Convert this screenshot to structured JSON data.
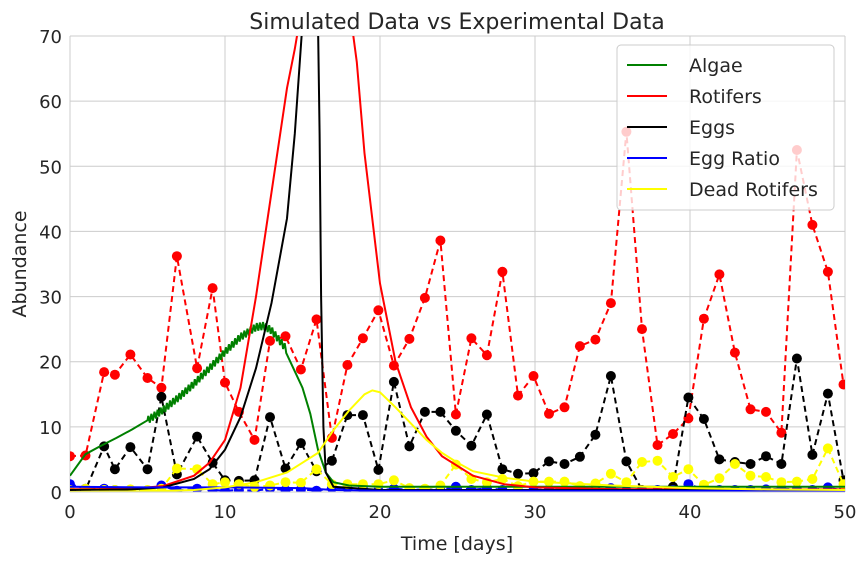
{
  "chart_data": {
    "type": "line",
    "title": "Simulated Data vs Experimental Data",
    "xlabel": "Time [days]",
    "ylabel": "Abundance",
    "xlim": [
      0,
      50
    ],
    "ylim": [
      0,
      70
    ],
    "xticks": [
      0,
      10,
      20,
      30,
      40,
      50
    ],
    "yticks": [
      0,
      10,
      20,
      30,
      40,
      50,
      60,
      70
    ],
    "grid": true,
    "legend_position": "top-right",
    "legend": [
      "Algae",
      "Rotifers",
      "Eggs",
      "Egg Ratio",
      "Dead Rotifers"
    ],
    "simulated_series": [
      {
        "name": "Algae",
        "color": "#008000",
        "points": [
          [
            0,
            2.5
          ],
          [
            1,
            5.8
          ],
          [
            2,
            7.1
          ],
          [
            3,
            8.3
          ],
          [
            4,
            9.6
          ],
          [
            5,
            11
          ],
          [
            6,
            12.6
          ],
          [
            7,
            14.5
          ],
          [
            8,
            16.6
          ],
          [
            9,
            19
          ],
          [
            10,
            21.5
          ],
          [
            11,
            23.8
          ],
          [
            12,
            25.3
          ],
          [
            12.5,
            25.5
          ],
          [
            13,
            24.8
          ],
          [
            14,
            21.8
          ],
          [
            15,
            16
          ],
          [
            15.5,
            12
          ],
          [
            16,
            6.5
          ],
          [
            16.5,
            3
          ],
          [
            17,
            1.5
          ],
          [
            18,
            1
          ],
          [
            20,
            0.8
          ],
          [
            25,
            0.8
          ],
          [
            30,
            0.8
          ],
          [
            35,
            0.8
          ],
          [
            40,
            0.8
          ],
          [
            45,
            0.8
          ],
          [
            50,
            0.8
          ]
        ],
        "oscillation": {
          "x_start": 5,
          "x_end": 14,
          "amplitude": 0.6,
          "period": 0.2
        }
      },
      {
        "name": "Rotifers",
        "color": "#ff0000",
        "points": [
          [
            0,
            0.4
          ],
          [
            2,
            0.45
          ],
          [
            4,
            0.5
          ],
          [
            6,
            0.9
          ],
          [
            8,
            2.5
          ],
          [
            9,
            4.5
          ],
          [
            10,
            8
          ],
          [
            11,
            16
          ],
          [
            12,
            30
          ],
          [
            13,
            46
          ],
          [
            14,
            62
          ],
          [
            14.5,
            68
          ],
          [
            15,
            75
          ],
          [
            18,
            75
          ],
          [
            18.5,
            66
          ],
          [
            19,
            52
          ],
          [
            20,
            32
          ],
          [
            21,
            20
          ],
          [
            22,
            13
          ],
          [
            23,
            8.5
          ],
          [
            24,
            5.5
          ],
          [
            26,
            2.5
          ],
          [
            28,
            1.2
          ],
          [
            30,
            0.7
          ],
          [
            35,
            0.45
          ],
          [
            40,
            0.4
          ],
          [
            45,
            0.4
          ],
          [
            50,
            0.4
          ]
        ]
      },
      {
        "name": "Eggs",
        "color": "#000000",
        "points": [
          [
            0,
            0.3
          ],
          [
            4,
            0.4
          ],
          [
            6,
            0.7
          ],
          [
            8,
            2
          ],
          [
            9,
            3.5
          ],
          [
            10,
            6.5
          ],
          [
            11,
            11.5
          ],
          [
            12,
            19
          ],
          [
            13,
            29
          ],
          [
            14,
            42
          ],
          [
            14.5,
            55
          ],
          [
            15,
            72
          ],
          [
            16,
            72
          ],
          [
            16.1,
            55
          ],
          [
            16.2,
            30
          ],
          [
            16.35,
            10
          ],
          [
            16.5,
            3
          ],
          [
            17,
            0.8
          ],
          [
            20,
            0.3
          ],
          [
            50,
            0.3
          ]
        ]
      },
      {
        "name": "Egg Ratio",
        "color": "#0000ff",
        "points": [
          [
            0,
            0.8
          ],
          [
            5,
            0.7
          ],
          [
            10,
            0.7
          ],
          [
            15,
            0.6
          ],
          [
            17,
            0.3
          ],
          [
            20,
            0.2
          ],
          [
            30,
            0.2
          ],
          [
            40,
            0.2
          ],
          [
            50,
            0.2
          ]
        ]
      },
      {
        "name": "Dead Rotifers",
        "color": "#ffff00",
        "points": [
          [
            0,
            0
          ],
          [
            5,
            0.1
          ],
          [
            8,
            0.3
          ],
          [
            10,
            0.7
          ],
          [
            12,
            1.5
          ],
          [
            14,
            3
          ],
          [
            15,
            4.5
          ],
          [
            16,
            6
          ],
          [
            17,
            9.5
          ],
          [
            18,
            12.5
          ],
          [
            19,
            15
          ],
          [
            19.5,
            15.6
          ],
          [
            20,
            15.3
          ],
          [
            21,
            13
          ],
          [
            22,
            10.5
          ],
          [
            23,
            8
          ],
          [
            24,
            6
          ],
          [
            25,
            4.5
          ],
          [
            26,
            3.2
          ],
          [
            28,
            2.2
          ],
          [
            30,
            1.6
          ],
          [
            35,
            1
          ],
          [
            40,
            0.6
          ],
          [
            45,
            0.4
          ],
          [
            50,
            0.3
          ]
        ]
      }
    ],
    "experimental_series": [
      {
        "name": "Rotifers (experimental)",
        "color": "#ff0000",
        "x": [
          0,
          1,
          2.2,
          2.9,
          3.9,
          5,
          5.9,
          6.9,
          8.2,
          9.2,
          10,
          10.9,
          11.9,
          12.9,
          13.9,
          14.9,
          15.9,
          16.9,
          17.9,
          18.9,
          19.9,
          20.9,
          21.9,
          22.9,
          23.9,
          24.9,
          25.9,
          26.9,
          27.9,
          28.9,
          29.9,
          30.9,
          31.9,
          32.9,
          33.9,
          34.9,
          35.9,
          36.9,
          37.9,
          38.9,
          39.9,
          40.9,
          41.9,
          42.9,
          43.9,
          44.9,
          45.9,
          46.9,
          47.9,
          48.9,
          49.9
        ],
        "y": [
          5.5,
          5.6,
          18.4,
          18,
          21.1,
          17.5,
          16,
          36.2,
          19,
          31.3,
          16.8,
          12.3,
          8,
          23.2,
          23.9,
          18.8,
          26.5,
          8.3,
          19.5,
          23.6,
          27.9,
          19.4,
          23.5,
          29.8,
          38.6,
          11.9,
          23.6,
          21,
          33.8,
          14.8,
          17.8,
          12,
          13,
          22.4,
          23.4,
          29,
          55.3,
          25,
          7.2,
          8.9,
          11.3,
          26.6,
          33.4,
          21.4,
          12.7,
          12.3,
          9.1,
          52.5,
          41,
          33.8,
          16.5
        ]
      },
      {
        "name": "Eggs (experimental)",
        "color": "#000000",
        "x": [
          0,
          1,
          2.2,
          2.9,
          3.9,
          5,
          5.9,
          6.9,
          8.2,
          9.2,
          10,
          10.9,
          11.9,
          12.9,
          13.9,
          14.9,
          15.9,
          16.9,
          17.9,
          18.9,
          19.9,
          20.9,
          21.9,
          22.9,
          23.9,
          24.9,
          25.9,
          26.9,
          27.9,
          28.9,
          29.9,
          30.9,
          31.9,
          32.9,
          33.9,
          34.9,
          35.9,
          36.9,
          37.9,
          38.9,
          39.9,
          40.9,
          41.9,
          42.9,
          43.9,
          44.9,
          45.9,
          46.9,
          47.9,
          48.9,
          49.9
        ],
        "y": [
          0.2,
          0.3,
          7,
          3.5,
          6.9,
          3.5,
          14.6,
          2.7,
          8.5,
          4.5,
          1.8,
          1.7,
          1.8,
          11.5,
          3.6,
          7.5,
          3.2,
          4.8,
          11.8,
          11.8,
          3.4,
          16.9,
          7,
          12.3,
          12.3,
          9.4,
          7.1,
          11.9,
          3.5,
          2.8,
          2.9,
          4.7,
          4.3,
          5.4,
          8.8,
          17.8,
          4.7,
          0.3,
          0.2,
          0.8,
          14.5,
          11.2,
          5,
          4.6,
          4.3,
          5.5,
          4.3,
          20.5,
          5.7,
          15.1,
          1.8
        ]
      },
      {
        "name": "Egg Ratio (experimental)",
        "color": "#0000ff",
        "x": [
          0,
          1,
          2.2,
          2.9,
          3.9,
          5,
          5.9,
          6.9,
          8.2,
          9.2,
          10,
          10.9,
          11.9,
          12.9,
          13.9,
          14.9,
          15.9,
          16.9,
          17.9,
          18.9,
          19.9,
          20.9,
          21.9,
          22.9,
          23.9,
          24.9,
          25.9,
          26.9,
          27.9,
          28.9,
          29.9,
          30.9,
          31.9,
          32.9,
          33.9,
          34.9,
          35.9,
          36.9,
          37.9,
          38.9,
          39.9,
          40.9,
          41.9,
          42.9,
          43.9,
          44.9,
          45.9,
          46.9,
          47.9,
          48.9,
          49.9
        ],
        "y": [
          1.2,
          0.5,
          0.5,
          0.3,
          0.3,
          0.2,
          1,
          0.2,
          0.5,
          0.3,
          0.2,
          0.3,
          0.2,
          0.5,
          0.3,
          0.4,
          0.2,
          0.6,
          0.6,
          0.5,
          0.2,
          0.5,
          0.3,
          0.4,
          0.3,
          0.8,
          0.3,
          0.6,
          0.3,
          0.2,
          0.3,
          0.4,
          0.3,
          0.3,
          0.4,
          0.6,
          0.2,
          0.2,
          0.3,
          0.3,
          1.2,
          0.4,
          0.3,
          0.3,
          0.3,
          0.4,
          0.5,
          0.4,
          0.3,
          0.7,
          0.2
        ]
      },
      {
        "name": "Dead Rotifers (experimental)",
        "color": "#ffff00",
        "x": [
          0,
          1,
          2.2,
          2.9,
          3.9,
          5,
          5.9,
          6.9,
          8.2,
          9.2,
          10,
          10.9,
          11.9,
          12.9,
          13.9,
          14.9,
          15.9,
          16.9,
          17.9,
          18.9,
          19.9,
          20.9,
          21.9,
          22.9,
          23.9,
          24.9,
          25.9,
          26.9,
          27.9,
          28.9,
          29.9,
          30.9,
          31.9,
          32.9,
          33.9,
          34.9,
          35.9,
          36.9,
          37.9,
          38.9,
          39.9,
          40.9,
          41.9,
          42.9,
          43.9,
          44.9,
          45.9,
          46.9,
          47.9,
          48.9,
          49.9
        ],
        "y": [
          0.3,
          0.5,
          0.3,
          0.3,
          0.4,
          0.3,
          0.5,
          3.6,
          3.5,
          1.2,
          1.5,
          1.2,
          0.8,
          1,
          1.5,
          1.4,
          3.5,
          1.2,
          1.2,
          1.2,
          1.2,
          1.8,
          0.6,
          0.5,
          1,
          4.2,
          2,
          1.5,
          2,
          0.9,
          1.6,
          1.6,
          1.6,
          0.9,
          1.3,
          2.8,
          1.5,
          4.6,
          4.8,
          2.3,
          3.5,
          1.1,
          2.1,
          4.3,
          2.5,
          2.3,
          1.5,
          1.6,
          2,
          6.7,
          1.2
        ]
      }
    ]
  }
}
